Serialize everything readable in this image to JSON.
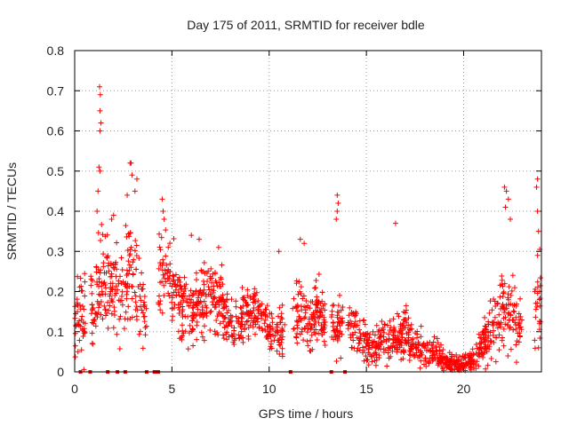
{
  "chart_data": {
    "type": "scatter",
    "title": "Day 175 of 2011, SRMTID for receiver bdle",
    "xlabel": "GPS time / hours",
    "ylabel": "SRMTID / TECUs",
    "xlim": [
      0,
      24
    ],
    "ylim": [
      0,
      0.8
    ],
    "xticks": [
      0,
      5,
      10,
      15,
      20
    ],
    "yticks": [
      0,
      0.1,
      0.2,
      0.3,
      0.4,
      0.5,
      0.6,
      0.7,
      0.8
    ],
    "xtick_labels": [
      "0",
      "5",
      "10",
      "15",
      "20"
    ],
    "ytick_labels": [
      "0",
      "0.1",
      "0.2",
      "0.3",
      "0.4",
      "0.5",
      "0.6",
      "0.7",
      "0.8"
    ],
    "grid": true,
    "marker": "+",
    "color": "#ff0000",
    "series": [
      {
        "name": "SRMTID",
        "envelope": {
          "x": [
            0,
            1,
            1.3,
            1.6,
            2,
            2.5,
            2.8,
            3.1,
            3.5,
            4,
            4.5,
            5,
            5.5,
            6,
            6.5,
            7,
            7.5,
            8,
            8.5,
            9,
            9.5,
            10,
            10.5,
            11,
            11.5,
            12,
            12.5,
            13,
            13.5,
            14,
            14.5,
            15,
            15.5,
            16,
            16.5,
            17,
            17.5,
            18,
            18.5,
            19,
            19.5,
            20,
            20.5,
            21,
            21.5,
            22,
            22.5,
            23,
            23.5,
            24
          ],
          "center": [
            0.15,
            0.15,
            0.24,
            0.22,
            0.2,
            0.2,
            0.25,
            0.22,
            0.16,
            0.1,
            0.26,
            0.2,
            0.17,
            0.15,
            0.17,
            0.2,
            0.17,
            0.12,
            0.13,
            0.15,
            0.13,
            0.1,
            0.1,
            0.12,
            0.16,
            0.12,
            0.14,
            0.12,
            0.11,
            0.14,
            0.1,
            0.07,
            0.06,
            0.1,
            0.08,
            0.1,
            0.07,
            0.05,
            0.05,
            0.03,
            0.02,
            0.02,
            0.03,
            0.07,
            0.12,
            0.16,
            0.15,
            0.1,
            0.1,
            0.2
          ],
          "spread": [
            0.1,
            0.1,
            0.14,
            0.12,
            0.1,
            0.12,
            0.14,
            0.12,
            0.08,
            0.06,
            0.1,
            0.1,
            0.08,
            0.07,
            0.08,
            0.1,
            0.08,
            0.06,
            0.06,
            0.07,
            0.06,
            0.05,
            0.05,
            0.06,
            0.09,
            0.07,
            0.08,
            0.07,
            0.06,
            0.08,
            0.06,
            0.05,
            0.04,
            0.06,
            0.05,
            0.06,
            0.05,
            0.035,
            0.03,
            0.025,
            0.02,
            0.02,
            0.025,
            0.05,
            0.08,
            0.1,
            0.1,
            0.06,
            0.06,
            0.15
          ]
        },
        "outliers": [
          [
            1.28,
            0.71
          ],
          [
            1.32,
            0.69
          ],
          [
            1.3,
            0.65
          ],
          [
            1.35,
            0.62
          ],
          [
            1.3,
            0.6
          ],
          [
            1.25,
            0.51
          ],
          [
            1.3,
            0.5
          ],
          [
            2.85,
            0.52
          ],
          [
            2.9,
            0.52
          ],
          [
            2.95,
            0.49
          ],
          [
            3.2,
            0.48
          ],
          [
            3.1,
            0.45
          ],
          [
            2.7,
            0.44
          ],
          [
            1.2,
            0.45
          ],
          [
            1.15,
            0.4
          ],
          [
            2.0,
            0.39
          ],
          [
            1.9,
            0.38
          ],
          [
            4.5,
            0.43
          ],
          [
            4.55,
            0.4
          ],
          [
            4.6,
            0.38
          ],
          [
            13.5,
            0.44
          ],
          [
            13.55,
            0.42
          ],
          [
            13.5,
            0.4
          ],
          [
            13.45,
            0.38
          ],
          [
            16.5,
            0.37
          ],
          [
            22.1,
            0.46
          ],
          [
            22.2,
            0.45
          ],
          [
            22.3,
            0.43
          ],
          [
            22.15,
            0.41
          ],
          [
            22.4,
            0.38
          ],
          [
            23.8,
            0.48
          ],
          [
            23.75,
            0.46
          ],
          [
            23.8,
            0.4
          ],
          [
            23.85,
            0.35
          ],
          [
            23.8,
            0.29
          ],
          [
            23.9,
            0.18
          ],
          [
            23.9,
            0.12
          ],
          [
            23.85,
            0.06
          ],
          [
            11.6,
            0.33
          ],
          [
            11.8,
            0.32
          ],
          [
            10.5,
            0.3
          ],
          [
            6.0,
            0.34
          ],
          [
            6.4,
            0.33
          ],
          [
            7.4,
            0.31
          ]
        ],
        "zero_markers_x": [
          0.3,
          0.8,
          1.7,
          2.2,
          2.6,
          3.7,
          4.1,
          4.2,
          4.3,
          11.1,
          13.2,
          13.9
        ]
      }
    ]
  }
}
